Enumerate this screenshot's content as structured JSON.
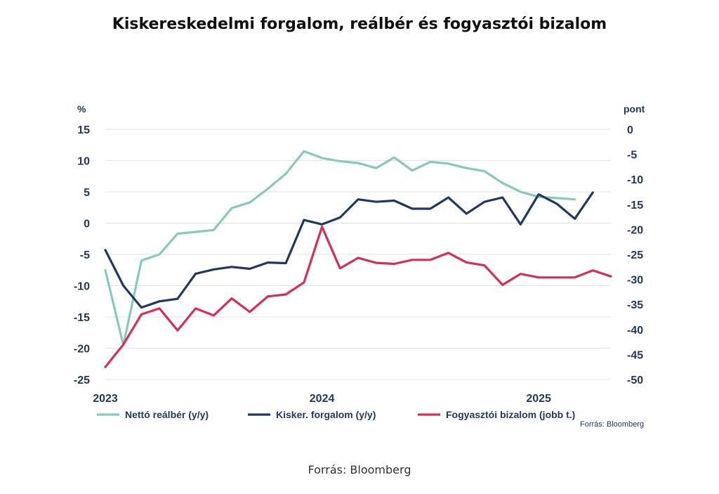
{
  "title": "Kiskereskedelmi forgalom, reálbér és fogyasztói bizalom",
  "footer": "Forrás: Bloomberg",
  "chart_data": {
    "type": "line",
    "left_axis": {
      "unit": "%",
      "ticks": [
        15,
        10,
        5,
        0,
        -5,
        -10,
        -15,
        -20,
        -25
      ],
      "range": [
        -25,
        15
      ]
    },
    "right_axis": {
      "unit": "pont",
      "ticks": [
        0,
        -5,
        -10,
        -15,
        -20,
        -25,
        -30,
        -35,
        -40,
        -45,
        -50
      ],
      "range": [
        -50,
        0
      ]
    },
    "x_labels": [
      {
        "label": "2023",
        "index": 0
      },
      {
        "label": "2024",
        "index": 12
      },
      {
        "label": "2025",
        "index": 24
      }
    ],
    "grid": true,
    "legend_position": "bottom",
    "source_note": "Forrás: Bloomberg",
    "series": [
      {
        "name": "Nettó reálbér (y/y)",
        "axis": "left",
        "color": "#88c9bd",
        "values": [
          -7.5,
          -19.5,
          -6,
          -5,
          -1.7,
          -1.4,
          -1.1,
          2.4,
          3.3,
          5.5,
          7.9,
          11.5,
          10.4,
          9.9,
          9.6,
          8.8,
          10.5,
          8.4,
          9.8,
          9.5,
          8.8,
          8.3,
          6.4,
          5.0,
          4.2,
          4.0,
          3.8
        ]
      },
      {
        "name": "Kisker. forgalom (y/y)",
        "axis": "left",
        "color": "#1f3864",
        "values": [
          -4.3,
          -10,
          -13.5,
          -12.5,
          -12.1,
          -8.1,
          -7.4,
          -7.0,
          -7.3,
          -6.3,
          -6.4,
          0.5,
          -0.2,
          0.9,
          3.8,
          3.4,
          3.6,
          2.3,
          2.3,
          4.1,
          1.5,
          3.4,
          4.1,
          -0.2,
          4.6,
          3.1,
          0.7,
          4.9
        ]
      },
      {
        "name": "Fogyasztói bizalom (jobb t.)",
        "axis": "right",
        "color": "#d62f55",
        "values": [
          -47.5,
          -43,
          -37,
          -35.8,
          -40.2,
          -35.8,
          -37.2,
          -33.8,
          -36.5,
          -33.4,
          -33,
          -30.6,
          -19.5,
          -27.8,
          -25.7,
          -26.7,
          -26.9,
          -26.1,
          -26.1,
          -24.7,
          -26.6,
          -27.2,
          -31.1,
          -28.9,
          -29.6,
          -29.6,
          -29.6,
          -28.2,
          -29.4
        ]
      }
    ]
  }
}
